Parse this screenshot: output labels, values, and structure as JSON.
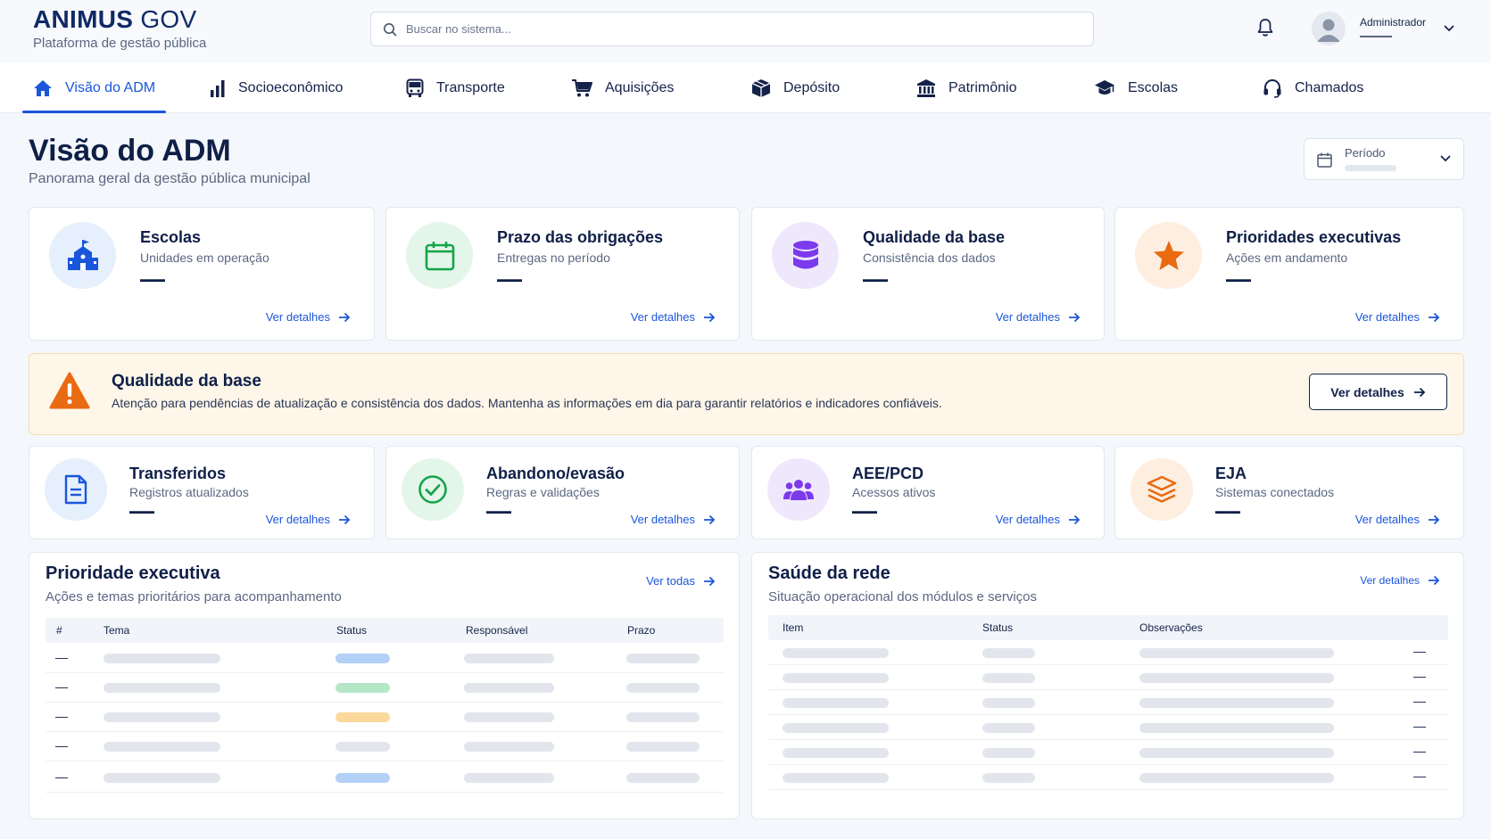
{
  "header": {
    "brand_bold": "ANIMUS",
    "brand_light": "GOV",
    "brand_sub": "Plataforma de gestão pública",
    "search_placeholder": "Buscar no sistema...",
    "user_name": "Administrador"
  },
  "nav": {
    "items": [
      {
        "label": "Visão do ADM",
        "icon": "home-icon",
        "active": true
      },
      {
        "label": "Socioeconômico",
        "icon": "bar-chart-icon"
      },
      {
        "label": "Transporte",
        "icon": "bus-icon"
      },
      {
        "label": "Aquisições",
        "icon": "cart-icon"
      },
      {
        "label": "Depósito",
        "icon": "box-icon"
      },
      {
        "label": "Patrimônio",
        "icon": "bank-icon"
      },
      {
        "label": "Escolas",
        "icon": "graduation-cap-icon"
      },
      {
        "label": "Chamados",
        "icon": "headset-icon"
      }
    ]
  },
  "page": {
    "title": "Visão do ADM",
    "subtitle": "Panorama geral da gestão pública municipal",
    "period_label": "Período"
  },
  "kpis": [
    {
      "title": "Escolas",
      "subtitle": "Unidades em operação",
      "value": "—",
      "link": "Ver detalhes",
      "icon": "school-icon",
      "color": "#1a56db",
      "bg": "#e6effc"
    },
    {
      "title": "Prazo das obrigações",
      "subtitle": "Entregas no período",
      "value": "—",
      "link": "Ver detalhes",
      "icon": "calendar-icon",
      "color": "#16a34a",
      "bg": "#e4f6ea"
    },
    {
      "title": "Qualidade da base",
      "subtitle": "Consistência dos dados",
      "value": "—",
      "link": "Ver detalhes",
      "icon": "database-icon",
      "color": "#7c3aed",
      "bg": "#efe8fc"
    },
    {
      "title": "Prioridades executivas",
      "subtitle": "Ações em andamento",
      "value": "—",
      "link": "Ver detalhes",
      "icon": "star-icon",
      "color": "#ea6a12",
      "bg": "#fdeee0"
    }
  ],
  "alert": {
    "title": "Qualidade da base",
    "text": "Atenção para pendências de atualização e consistência dos dados. Mantenha as informações em dia para garantir relatórios e indicadores confiáveis.",
    "button": "Ver detalhes",
    "color": "#ea6a12"
  },
  "minis": [
    {
      "title": "Transferidos",
      "subtitle": "Registros atualizados",
      "value": "—",
      "link": "Ver detalhes",
      "icon": "document-icon",
      "color": "#1a56db",
      "bg": "#e6effc"
    },
    {
      "title": "Abandono/evasão",
      "subtitle": "Regras e validações",
      "value": "—",
      "link": "Ver detalhes",
      "icon": "check-circle-icon",
      "color": "#16a34a",
      "bg": "#e4f6ea"
    },
    {
      "title": "AEE/PCD",
      "subtitle": "Acessos ativos",
      "value": "—",
      "link": "Ver detalhes",
      "icon": "users-icon",
      "color": "#7c3aed",
      "bg": "#efe8fc"
    },
    {
      "title": "EJA",
      "subtitle": "Sistemas conectados",
      "value": "—",
      "link": "Ver detalhes",
      "icon": "layers-icon",
      "color": "#ea6a12",
      "bg": "#fdeee0"
    }
  ],
  "priority": {
    "title": "Prioridade executiva",
    "subtitle": "Ações e temas prioritários para acompanhamento",
    "link": "Ver todas",
    "columns": [
      "#",
      "Tema",
      "Status",
      "Responsável",
      "Prazo"
    ],
    "rows": [
      {
        "num": "—",
        "status_color": "#b3d1f7"
      },
      {
        "num": "—",
        "status_color": "#b5e6c8"
      },
      {
        "num": "—",
        "status_color": "#fbd99c"
      },
      {
        "num": "—",
        "status_color": "#e2e6ec"
      },
      {
        "num": "—",
        "status_color": "#b3d1f7"
      }
    ]
  },
  "health": {
    "title": "Saúde da rede",
    "subtitle": "Situação operacional dos módulos e serviços",
    "link": "Ver detalhes",
    "columns": [
      "Item",
      "Status",
      "Observações"
    ],
    "rows": [
      {
        "trail": "—"
      },
      {
        "trail": "—"
      },
      {
        "trail": "—"
      },
      {
        "trail": "—"
      },
      {
        "trail": "—"
      },
      {
        "trail": "—"
      }
    ]
  }
}
